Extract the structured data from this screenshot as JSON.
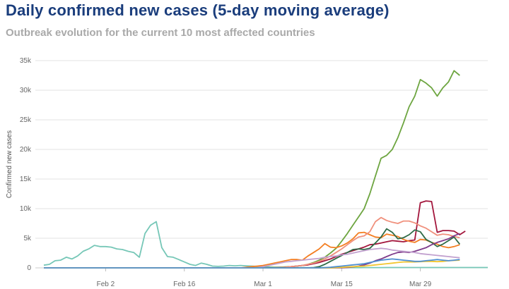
{
  "title": "Daily confirmed new cases (5-day moving average)",
  "subtitle": "Outbreak evolution for the current 10 most affected countries",
  "chart_data": {
    "type": "line",
    "title": "Daily confirmed new cases (5-day moving average)",
    "subtitle": "Outbreak evolution for the current 10 most affected countries",
    "ylabel": "Confirmed new cases",
    "xlabel": "",
    "ylim": [
      0,
      35000
    ],
    "yticks": [
      0,
      5000,
      10000,
      15000,
      20000,
      25000,
      30000,
      35000
    ],
    "ytick_labels": [
      "0",
      "5k",
      "10k",
      "15k",
      "20k",
      "25k",
      "30k",
      "35k"
    ],
    "x_start": "Jan 22",
    "x_end": "Apr 11",
    "xticks": [
      11,
      25,
      39,
      53,
      67
    ],
    "xtick_labels": [
      "Feb 2",
      "Feb 16",
      "Mar 1",
      "Mar 15",
      "Mar 29"
    ],
    "grid": "horizontal",
    "legend": "none",
    "series": [
      {
        "color": "#76c7b7",
        "start_day": 0,
        "values": [
          450,
          600,
          1200,
          1300,
          1800,
          1500,
          2000,
          2800,
          3200,
          3800,
          3600,
          3600,
          3500,
          3200,
          3100,
          2800,
          2600,
          1800,
          5800,
          7200,
          7800,
          3400,
          1900,
          1800,
          1400,
          1000,
          600,
          400,
          800,
          600,
          300,
          250,
          300,
          400,
          350,
          400,
          350,
          300,
          250,
          200,
          150,
          100,
          100,
          80,
          60,
          50,
          50,
          40,
          40,
          30,
          30,
          30,
          30,
          30,
          30,
          40,
          40,
          50,
          50,
          50,
          50,
          60,
          60,
          60,
          60,
          60,
          60,
          60,
          60,
          60,
          60,
          60,
          60,
          60,
          60,
          60,
          60,
          60,
          60,
          60
        ]
      },
      {
        "color": "#6da540",
        "start_day": 0,
        "values": [
          0,
          0,
          0,
          0,
          0,
          0,
          0,
          0,
          0,
          0,
          0,
          0,
          0,
          0,
          0,
          0,
          0,
          0,
          0,
          0,
          0,
          0,
          0,
          0,
          0,
          0,
          0,
          0,
          0,
          0,
          0,
          0,
          0,
          0,
          10,
          10,
          20,
          30,
          40,
          50,
          60,
          80,
          100,
          150,
          200,
          300,
          400,
          600,
          900,
          1300,
          1800,
          2500,
          3300,
          4500,
          5800,
          7200,
          8600,
          10000,
          12500,
          15500,
          18500,
          19000,
          20000,
          22000,
          24500,
          27200,
          29000,
          31800,
          31200,
          30400,
          29000,
          30400,
          31400,
          33300,
          32500
        ]
      },
      {
        "color": "#a3163c",
        "start_day": 0,
        "values": [
          0,
          0,
          0,
          0,
          0,
          0,
          0,
          0,
          0,
          0,
          0,
          0,
          0,
          0,
          0,
          0,
          0,
          0,
          0,
          0,
          0,
          0,
          0,
          0,
          0,
          0,
          0,
          0,
          0,
          0,
          0,
          0,
          0,
          0,
          0,
          0,
          0,
          0,
          0,
          0,
          0,
          0,
          50,
          100,
          200,
          300,
          400,
          500,
          700,
          900,
          1200,
          1500,
          1900,
          2300,
          2600,
          2900,
          3200,
          3500,
          3900,
          4000,
          4200,
          4400,
          4600,
          4500,
          4400,
          4600,
          4700,
          11000,
          11300,
          11200,
          6000,
          6300,
          6300,
          6200,
          5600,
          6200
        ]
      },
      {
        "color": "#f47e21",
        "start_day": 0,
        "values": [
          0,
          0,
          0,
          0,
          0,
          0,
          0,
          0,
          0,
          0,
          0,
          0,
          0,
          0,
          0,
          0,
          0,
          0,
          0,
          0,
          0,
          0,
          0,
          0,
          0,
          0,
          0,
          0,
          0,
          0,
          0,
          0,
          0,
          0,
          0,
          0,
          100,
          200,
          300,
          400,
          600,
          800,
          1000,
          1200,
          1400,
          1400,
          1300,
          2000,
          2600,
          3200,
          4100,
          3500,
          3400,
          3700,
          4200,
          4900,
          5900,
          6000,
          5600,
          5200,
          5100,
          5700,
          5500,
          5300,
          4800,
          4500,
          4300,
          4800,
          4700,
          4300,
          4000,
          3600,
          3400,
          3600,
          3900
        ]
      },
      {
        "color": "#f0907c",
        "start_day": 0,
        "values": [
          0,
          0,
          0,
          0,
          0,
          0,
          0,
          0,
          0,
          0,
          0,
          0,
          0,
          0,
          0,
          0,
          0,
          0,
          0,
          0,
          0,
          0,
          0,
          0,
          0,
          0,
          0,
          0,
          0,
          0,
          0,
          0,
          0,
          0,
          0,
          0,
          0,
          0,
          0,
          0,
          0,
          20,
          50,
          100,
          200,
          300,
          400,
          600,
          800,
          1100,
          1500,
          2000,
          2600,
          3200,
          3900,
          4600,
          5200,
          5400,
          6100,
          7800,
          8500,
          8000,
          7700,
          7500,
          7900,
          7900,
          7600,
          7100,
          6700,
          6100,
          5500,
          5700,
          5600,
          5300,
          5100
        ]
      },
      {
        "color": "#2f6b47",
        "start_day": 0,
        "values": [
          0,
          0,
          0,
          0,
          0,
          0,
          0,
          0,
          0,
          0,
          0,
          0,
          0,
          0,
          0,
          0,
          0,
          0,
          0,
          0,
          0,
          0,
          0,
          0,
          0,
          0,
          0,
          0,
          0,
          0,
          0,
          0,
          0,
          0,
          0,
          0,
          0,
          0,
          0,
          0,
          0,
          0,
          0,
          0,
          0,
          0,
          0,
          0,
          50,
          200,
          600,
          1100,
          1600,
          2100,
          2600,
          3100,
          3200,
          3100,
          3300,
          4200,
          5200,
          6600,
          6000,
          4900,
          5100,
          5600,
          6400,
          6100,
          4800,
          4300,
          3600,
          4000,
          4600,
          5200,
          4000
        ]
      },
      {
        "color": "#7e3a8a",
        "start_day": 0,
        "values": [
          0,
          0,
          0,
          0,
          0,
          0,
          0,
          0,
          0,
          0,
          0,
          0,
          0,
          0,
          0,
          0,
          0,
          0,
          0,
          0,
          0,
          0,
          0,
          0,
          0,
          0,
          0,
          0,
          0,
          0,
          0,
          0,
          0,
          0,
          0,
          0,
          0,
          0,
          0,
          0,
          0,
          0,
          0,
          0,
          0,
          0,
          0,
          0,
          0,
          0,
          0,
          0,
          0,
          20,
          60,
          150,
          300,
          500,
          800,
          1200,
          1500,
          1900,
          2300,
          2600,
          2700,
          2600,
          2800,
          3100,
          3400,
          3900,
          4300,
          4600,
          4900,
          5400,
          5800
        ]
      },
      {
        "color": "#c2a1cf",
        "start_day": 0,
        "values": [
          0,
          0,
          0,
          0,
          0,
          0,
          0,
          0,
          0,
          0,
          0,
          0,
          0,
          0,
          0,
          0,
          0,
          0,
          0,
          0,
          0,
          0,
          0,
          0,
          0,
          0,
          0,
          0,
          0,
          0,
          0,
          0,
          0,
          0,
          0,
          0,
          0,
          0,
          50,
          200,
          400,
          600,
          800,
          1000,
          1100,
          1200,
          1300,
          1400,
          1500,
          1600,
          1800,
          1900,
          2000,
          2200,
          2300,
          2500,
          2700,
          2900,
          3100,
          3200,
          3300,
          3200,
          3000,
          2900,
          2800,
          2700,
          2600,
          2400,
          2300,
          2200,
          2100,
          2000,
          1900,
          1800,
          1700
        ]
      },
      {
        "color": "#f2c62f",
        "start_day": 0,
        "values": [
          0,
          0,
          0,
          0,
          0,
          0,
          0,
          0,
          0,
          0,
          0,
          0,
          0,
          0,
          0,
          0,
          0,
          0,
          0,
          0,
          0,
          0,
          0,
          0,
          0,
          0,
          0,
          0,
          0,
          0,
          0,
          0,
          0,
          0,
          0,
          0,
          0,
          0,
          0,
          0,
          0,
          0,
          0,
          0,
          0,
          0,
          0,
          0,
          0,
          0,
          0,
          0,
          50,
          100,
          150,
          200,
          250,
          300,
          400,
          500,
          600,
          700,
          800,
          900,
          1000,
          1000,
          1000,
          1050,
          1100,
          1100,
          1050,
          1100,
          1200,
          1250,
          1300
        ]
      },
      {
        "color": "#4f8fd0",
        "start_day": 0,
        "values": [
          0,
          0,
          0,
          0,
          0,
          0,
          0,
          0,
          0,
          0,
          0,
          0,
          0,
          0,
          0,
          0,
          0,
          0,
          0,
          0,
          0,
          0,
          0,
          0,
          0,
          0,
          0,
          0,
          0,
          0,
          0,
          0,
          0,
          0,
          0,
          0,
          0,
          0,
          0,
          0,
          0,
          0,
          0,
          0,
          0,
          0,
          0,
          0,
          0,
          0,
          50,
          100,
          200,
          300,
          400,
          500,
          600,
          700,
          900,
          1100,
          1300,
          1400,
          1500,
          1400,
          1300,
          1200,
          1100,
          1100,
          1200,
          1300,
          1400,
          1300,
          1200,
          1300,
          1400
        ]
      }
    ]
  }
}
